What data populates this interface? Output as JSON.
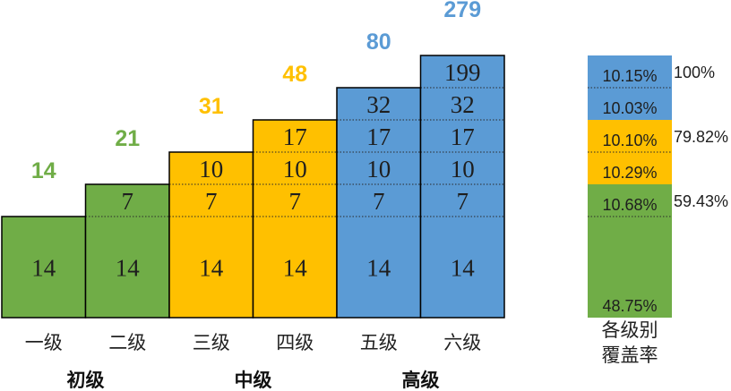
{
  "chart_data": {
    "type": "bar",
    "stacked": true,
    "grid": false,
    "categories": [
      "一级",
      "二级",
      "三级",
      "四级",
      "五级",
      "六级"
    ],
    "category_colors": [
      "#70AD47",
      "#70AD47",
      "#FFC000",
      "#FFC000",
      "#5B9BD5",
      "#5B9BD5"
    ],
    "series": [
      {
        "values": [
          14,
          14,
          14,
          14,
          14,
          14
        ]
      },
      {
        "values": [
          null,
          7,
          7,
          7,
          7,
          7
        ]
      },
      {
        "values": [
          null,
          null,
          10,
          10,
          10,
          10
        ]
      },
      {
        "values": [
          null,
          null,
          null,
          17,
          17,
          17
        ]
      },
      {
        "values": [
          null,
          null,
          null,
          null,
          32,
          32
        ]
      },
      {
        "values": [
          null,
          null,
          null,
          null,
          null,
          199
        ]
      }
    ],
    "totals": [
      14,
      21,
      31,
      48,
      80,
      279
    ],
    "groups": [
      {
        "label": "初级",
        "color": "#70AD47"
      },
      {
        "label": "中级",
        "color": "#FFC000"
      },
      {
        "label": "高级",
        "color": "#5B9BD5"
      }
    ],
    "coverage": {
      "label_lines": [
        "各级别",
        "覆盖率"
      ],
      "segments": [
        "48.75%",
        "10.68%",
        "10.29%",
        "10.10%",
        "10.03%",
        "10.15%"
      ],
      "cumulative": [
        "59.43%",
        "79.82%",
        "100%"
      ]
    }
  }
}
